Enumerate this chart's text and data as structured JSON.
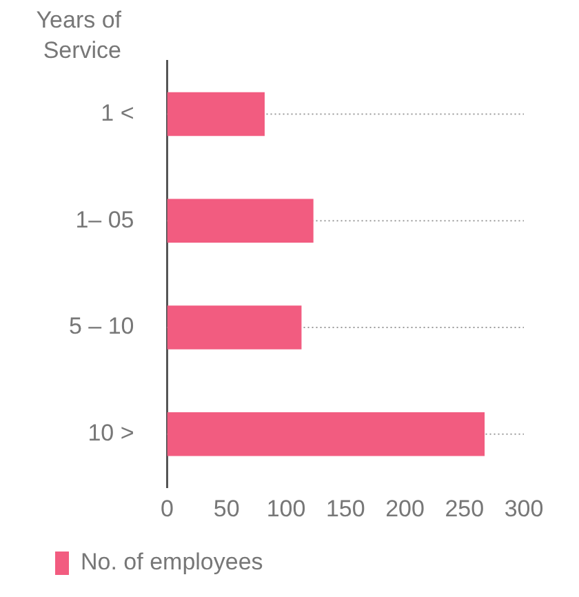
{
  "chart_data": {
    "type": "bar",
    "orientation": "horizontal",
    "ylabel": "Years of Service",
    "categories": [
      "1 <",
      "1– 05",
      "5 – 10",
      "10 >"
    ],
    "series": [
      {
        "name": "No. of employees",
        "color": "#f25c80",
        "values": [
          82,
          123,
          113,
          267
        ]
      }
    ],
    "xlim": [
      0,
      300
    ],
    "xticks": [
      0,
      50,
      100,
      150,
      200,
      250,
      300
    ],
    "grid": "y",
    "line_style": "dotted",
    "legend": "bottom left"
  }
}
